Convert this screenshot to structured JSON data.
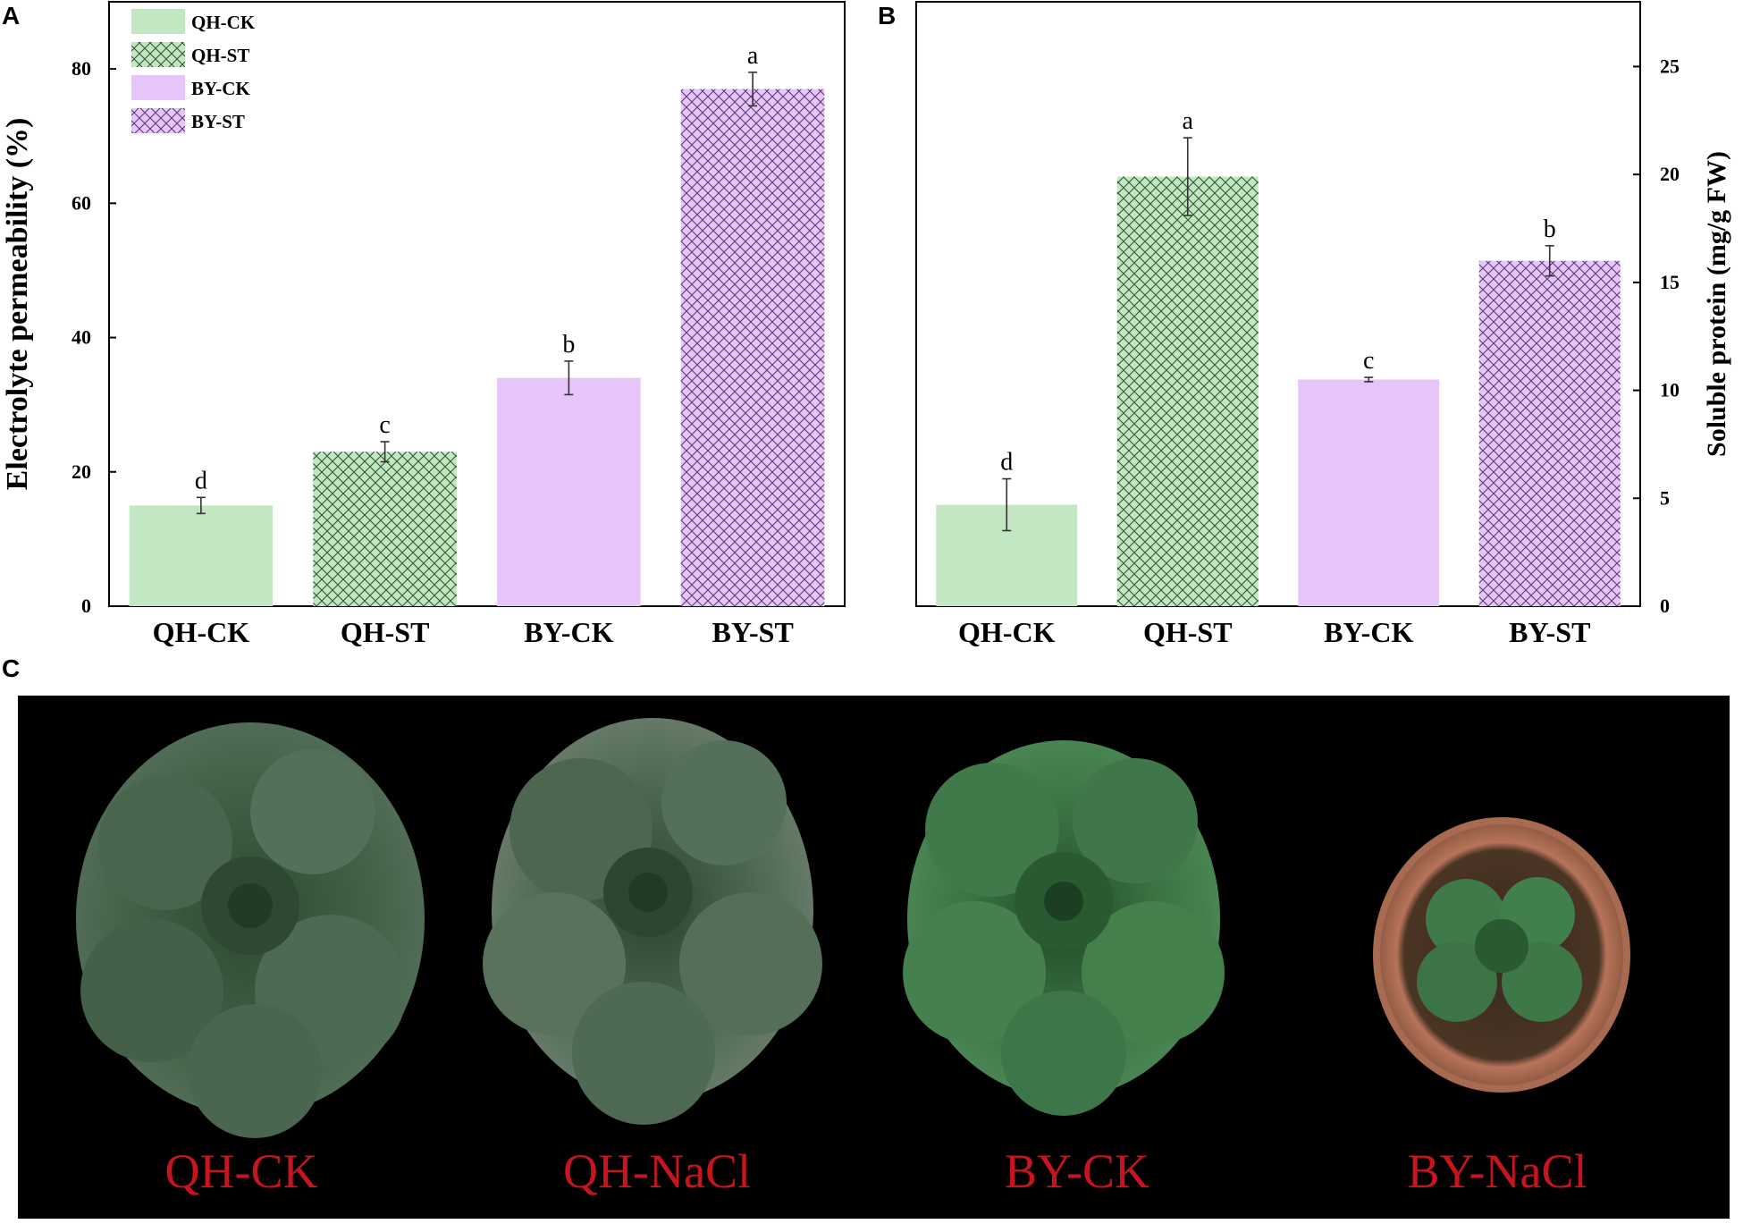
{
  "panels": {
    "a_letter": "A",
    "b_letter": "B",
    "c_letter": "C"
  },
  "chart_data": [
    {
      "type": "bar",
      "panel": "A",
      "categories": [
        "QH-CK",
        "QH-ST",
        "BY-CK",
        "BY-ST"
      ],
      "values": [
        15,
        23,
        34,
        77
      ],
      "errors": [
        1.2,
        1.5,
        2.5,
        2.5
      ],
      "significance": [
        "d",
        "c",
        "b",
        "a"
      ],
      "ylabel": "Electrolyte permeability (%)",
      "ylim": [
        0,
        90
      ],
      "yticks": [
        0,
        20,
        40,
        60,
        80
      ],
      "legend": {
        "placement": "top-left",
        "entries": [
          {
            "label": "QH-CK",
            "color": "#c3e6c3",
            "pattern": "solid"
          },
          {
            "label": "QH-ST",
            "color": "#c3e6c3",
            "pattern": "crosshatch"
          },
          {
            "label": "BY-CK",
            "color": "#e6c6fa",
            "pattern": "solid"
          },
          {
            "label": "BY-ST",
            "color": "#e6c6fa",
            "pattern": "crosshatch"
          }
        ]
      },
      "styles": [
        {
          "color": "#c3e6c3",
          "pattern": "solid"
        },
        {
          "color": "#c3e6c3",
          "pattern": "crosshatch"
        },
        {
          "color": "#e6c6fa",
          "pattern": "solid"
        },
        {
          "color": "#e6c6fa",
          "pattern": "crosshatch"
        }
      ]
    },
    {
      "type": "bar",
      "panel": "B",
      "categories": [
        "QH-CK",
        "QH-ST",
        "BY-CK",
        "BY-ST"
      ],
      "values": [
        4.7,
        19.9,
        10.5,
        16.0
      ],
      "errors": [
        1.2,
        1.8,
        0.1,
        0.7
      ],
      "significance": [
        "d",
        "a",
        "c",
        "b"
      ],
      "ylabel": "Soluble protein (mg/g FW)",
      "ylim": [
        0,
        28
      ],
      "yticks": [
        0,
        5,
        10,
        15,
        20,
        25
      ],
      "y_axis_side": "right",
      "styles": [
        {
          "color": "#c3e6c3",
          "pattern": "solid"
        },
        {
          "color": "#c3e6c3",
          "pattern": "crosshatch"
        },
        {
          "color": "#e6c6fa",
          "pattern": "solid"
        },
        {
          "color": "#e6c6fa",
          "pattern": "crosshatch"
        }
      ]
    }
  ],
  "photo": {
    "labels": [
      "QH-CK",
      "QH-NaCl",
      "BY-CK",
      "BY-NaCl"
    ],
    "label_color": "#c8141e",
    "background": "#000000"
  }
}
